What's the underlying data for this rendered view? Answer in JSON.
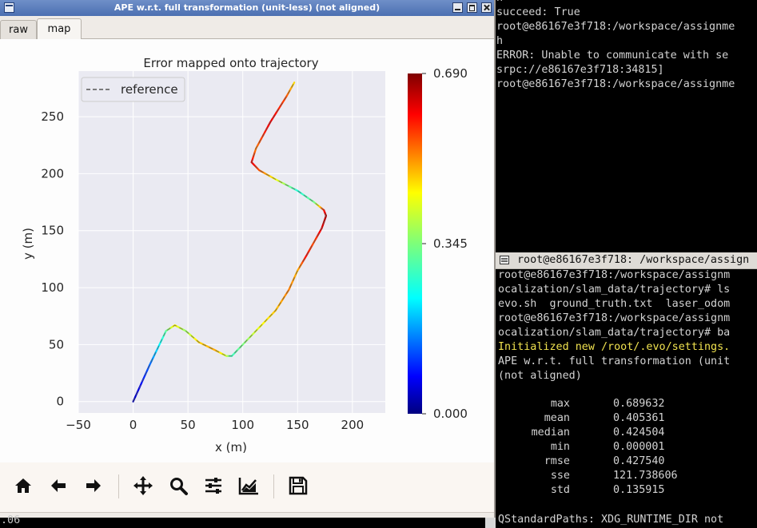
{
  "window": {
    "title": "APE w.r.t. full transformation (unit-less) (not aligned)",
    "tabs": [
      {
        "label": "raw"
      },
      {
        "label": "map"
      }
    ],
    "active_tab": "map"
  },
  "toolbar": {
    "buttons": [
      {
        "name": "home-icon"
      },
      {
        "name": "back-arrow-icon"
      },
      {
        "name": "forward-arrow-icon"
      },
      {
        "name": "pan-icon"
      },
      {
        "name": "zoom-icon"
      },
      {
        "name": "configure-subplots-icon"
      },
      {
        "name": "edit-axis-icon"
      },
      {
        "name": "save-icon"
      }
    ]
  },
  "terminal_top": {
    "lines": [
      "h",
      "succeed: True",
      "root@e86167e3f718:/workspace/assignme",
      "h",
      "ERROR: Unable to communicate with se",
      "srpc://e86167e3f718:34815]",
      "root@e86167e3f718:/workspace/assignme"
    ]
  },
  "terminal_bottom": {
    "title": "root@e86167e3f718: /workspace/assign",
    "lines": [
      "root@e86167e3f718:/workspace/assignm",
      "ocalization/slam_data/trajectory# ls",
      "evo.sh  ground_truth.txt  laser_odom",
      "root@e86167e3f718:/workspace/assignm",
      "ocalization/slam_data/trajectory# ba",
      "Initialized new /root/.evo/settings.",
      "APE w.r.t. full transformation (unit",
      "(not aligned)"
    ],
    "stats": [
      {
        "name": "max",
        "value": "0.689632"
      },
      {
        "name": "mean",
        "value": "0.405361"
      },
      {
        "name": "median",
        "value": "0.424504"
      },
      {
        "name": "min",
        "value": "0.000001"
      },
      {
        "name": "rmse",
        "value": "0.427540"
      },
      {
        "name": "sse",
        "value": "121.738606"
      },
      {
        "name": "std",
        "value": "0.135915"
      }
    ],
    "footer": "QStandardPaths: XDG_RUNTIME_DIR not"
  },
  "below_window_text": ".06",
  "chart_data": {
    "type": "line",
    "title": "Error mapped onto trajectory",
    "xlabel": "x (m)",
    "ylabel": "y (m)",
    "xlim": [
      -50,
      230
    ],
    "ylim": [
      -10,
      290
    ],
    "xticks": [
      -50,
      0,
      50,
      100,
      150,
      200
    ],
    "yticks": [
      0,
      50,
      100,
      150,
      200,
      250
    ],
    "grid": true,
    "legend": {
      "entries": [
        "reference"
      ],
      "location": "upper-left"
    },
    "colorbar": {
      "min": 0.0,
      "max": 0.69,
      "tick_labels": [
        "0.000",
        "0.345",
        "0.690"
      ],
      "colormap": "jet"
    },
    "series": [
      {
        "name": "reference",
        "x": [
          0,
          15,
          30,
          38,
          48,
          60,
          75,
          85,
          90,
          100,
          115,
          130,
          142,
          150,
          158,
          165,
          172,
          176,
          174,
          165,
          150,
          130,
          115,
          108,
          112,
          125,
          140,
          147
        ],
        "y": [
          0,
          32,
          62,
          67,
          62,
          52,
          45,
          40,
          40,
          50,
          65,
          80,
          98,
          115,
          128,
          140,
          152,
          163,
          168,
          175,
          185,
          195,
          203,
          210,
          222,
          245,
          268,
          280
        ],
        "error": [
          0.03,
          0.15,
          0.32,
          0.44,
          0.36,
          0.46,
          0.49,
          0.4,
          0.3,
          0.34,
          0.42,
          0.47,
          0.52,
          0.48,
          0.6,
          0.55,
          0.62,
          0.66,
          0.6,
          0.34,
          0.28,
          0.42,
          0.54,
          0.62,
          0.52,
          0.62,
          0.55,
          0.45
        ]
      }
    ]
  }
}
